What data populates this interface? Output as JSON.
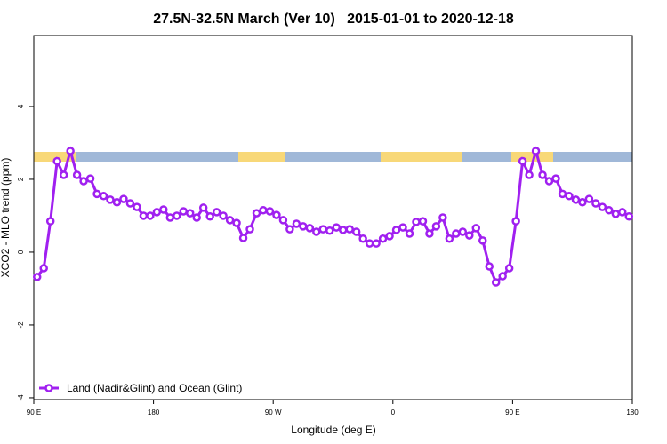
{
  "chart_data": {
    "type": "line",
    "title": "27.5N-32.5N March (Ver 10)   2015-01-01 to 2020-12-18",
    "x_label": "Longitude (deg E)",
    "y_label": "XCO2 - MLO trend (ppm)",
    "x": [
      92.5,
      97.5,
      102.5,
      107.5,
      112.5,
      117.5,
      122.5,
      127.5,
      132.5,
      137.5,
      142.5,
      147.5,
      152.5,
      157.5,
      162.5,
      167.5,
      172.5,
      177.5,
      182.5,
      187.5,
      192.5,
      197.5,
      202.5,
      207.5,
      212.5,
      217.5,
      222.5,
      227.5,
      232.5,
      237.5,
      242.5,
      247.5,
      252.5,
      257.5,
      262.5,
      267.5,
      272.5,
      277.5,
      282.5,
      287.5,
      292.5,
      297.5,
      302.5,
      307.5,
      312.5,
      317.5,
      322.5,
      327.5,
      332.5,
      337.5,
      342.5,
      347.5,
      352.5,
      357.5,
      362.5,
      367.5,
      372.5,
      377.5,
      382.5,
      387.5,
      392.5,
      397.5,
      402.5,
      407.5,
      412.5,
      417.5,
      422.5,
      427.5,
      432.5,
      437.5,
      442.5,
      447.5,
      452.5,
      457.5,
      462.5,
      467.5,
      472.5,
      477.5,
      482.5,
      487.5,
      492.5,
      497.5,
      502.5,
      507.5,
      512.5,
      517.5,
      522.5,
      527.5,
      532.5,
      537.5
    ],
    "series": [
      {
        "name": "Land (Nadir&Glint) and Ocean (Glint)",
        "color": "#a020f0",
        "values": [
          -0.68,
          -0.44,
          0.85,
          2.5,
          2.12,
          2.78,
          2.12,
          1.95,
          2.02,
          1.6,
          1.54,
          1.44,
          1.37,
          1.46,
          1.34,
          1.24,
          1.0,
          1.0,
          1.1,
          1.17,
          0.95,
          1.0,
          1.12,
          1.07,
          0.95,
          1.22,
          0.98,
          1.1,
          1.0,
          0.88,
          0.8,
          0.39,
          0.63,
          1.07,
          1.15,
          1.12,
          1.02,
          0.88,
          0.63,
          0.78,
          0.71,
          0.66,
          0.56,
          0.63,
          0.59,
          0.68,
          0.61,
          0.63,
          0.56,
          0.37,
          0.24,
          0.24,
          0.37,
          0.44,
          0.61,
          0.68,
          0.51,
          0.83,
          0.85,
          0.51,
          0.71,
          0.95,
          0.37,
          0.51,
          0.56,
          0.46,
          0.66,
          0.32,
          -0.39,
          -0.83,
          -0.66,
          -0.44,
          0.85,
          2.5,
          2.12,
          2.78,
          2.12,
          1.95,
          2.02,
          1.6,
          1.54,
          1.44,
          1.37,
          1.46,
          1.34,
          1.24,
          1.15,
          1.05,
          1.1,
          0.98
        ]
      }
    ],
    "xlim": [
      90,
      540
    ],
    "xticks": [
      {
        "value": 90,
        "label": "90 E"
      },
      {
        "value": 180,
        "label": "180"
      },
      {
        "value": 270,
        "label": "90 W"
      },
      {
        "value": 360,
        "label": "0"
      },
      {
        "value": 450,
        "label": "90 E"
      },
      {
        "value": 540,
        "label": "180"
      }
    ],
    "ylim": [
      -4.05,
      5.95
    ],
    "yticks": [
      -4,
      -2,
      0,
      2,
      4
    ],
    "legend": "bottom-left"
  }
}
